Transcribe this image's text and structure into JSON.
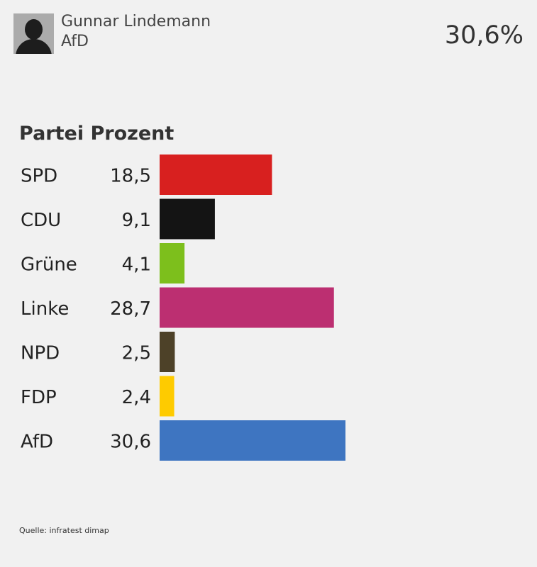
{
  "candidate": {
    "name": "Gunnar Lindemann",
    "party": "AfD",
    "percent": "30,6%"
  },
  "table": {
    "header": "Partei Prozent"
  },
  "chart_data": {
    "type": "bar",
    "orientation": "horizontal",
    "categories": [
      "SPD",
      "CDU",
      "Grüne",
      "Linke",
      "NPD",
      "FDP",
      "AfD"
    ],
    "values": [
      18.5,
      9.1,
      4.1,
      28.7,
      2.5,
      2.4,
      30.6
    ],
    "value_labels": [
      "18,5",
      "9,1",
      "4,1",
      "28,7",
      "2,5",
      "2,4",
      "30,6"
    ],
    "colors": [
      "#d8201f",
      "#141414",
      "#7dbf1c",
      "#bc2f71",
      "#4d4128",
      "#fecb00",
      "#3e75c1"
    ],
    "xlim": [
      0,
      30.6
    ],
    "grid": false,
    "legend": "none"
  },
  "source": "Quelle: infratest dimap"
}
